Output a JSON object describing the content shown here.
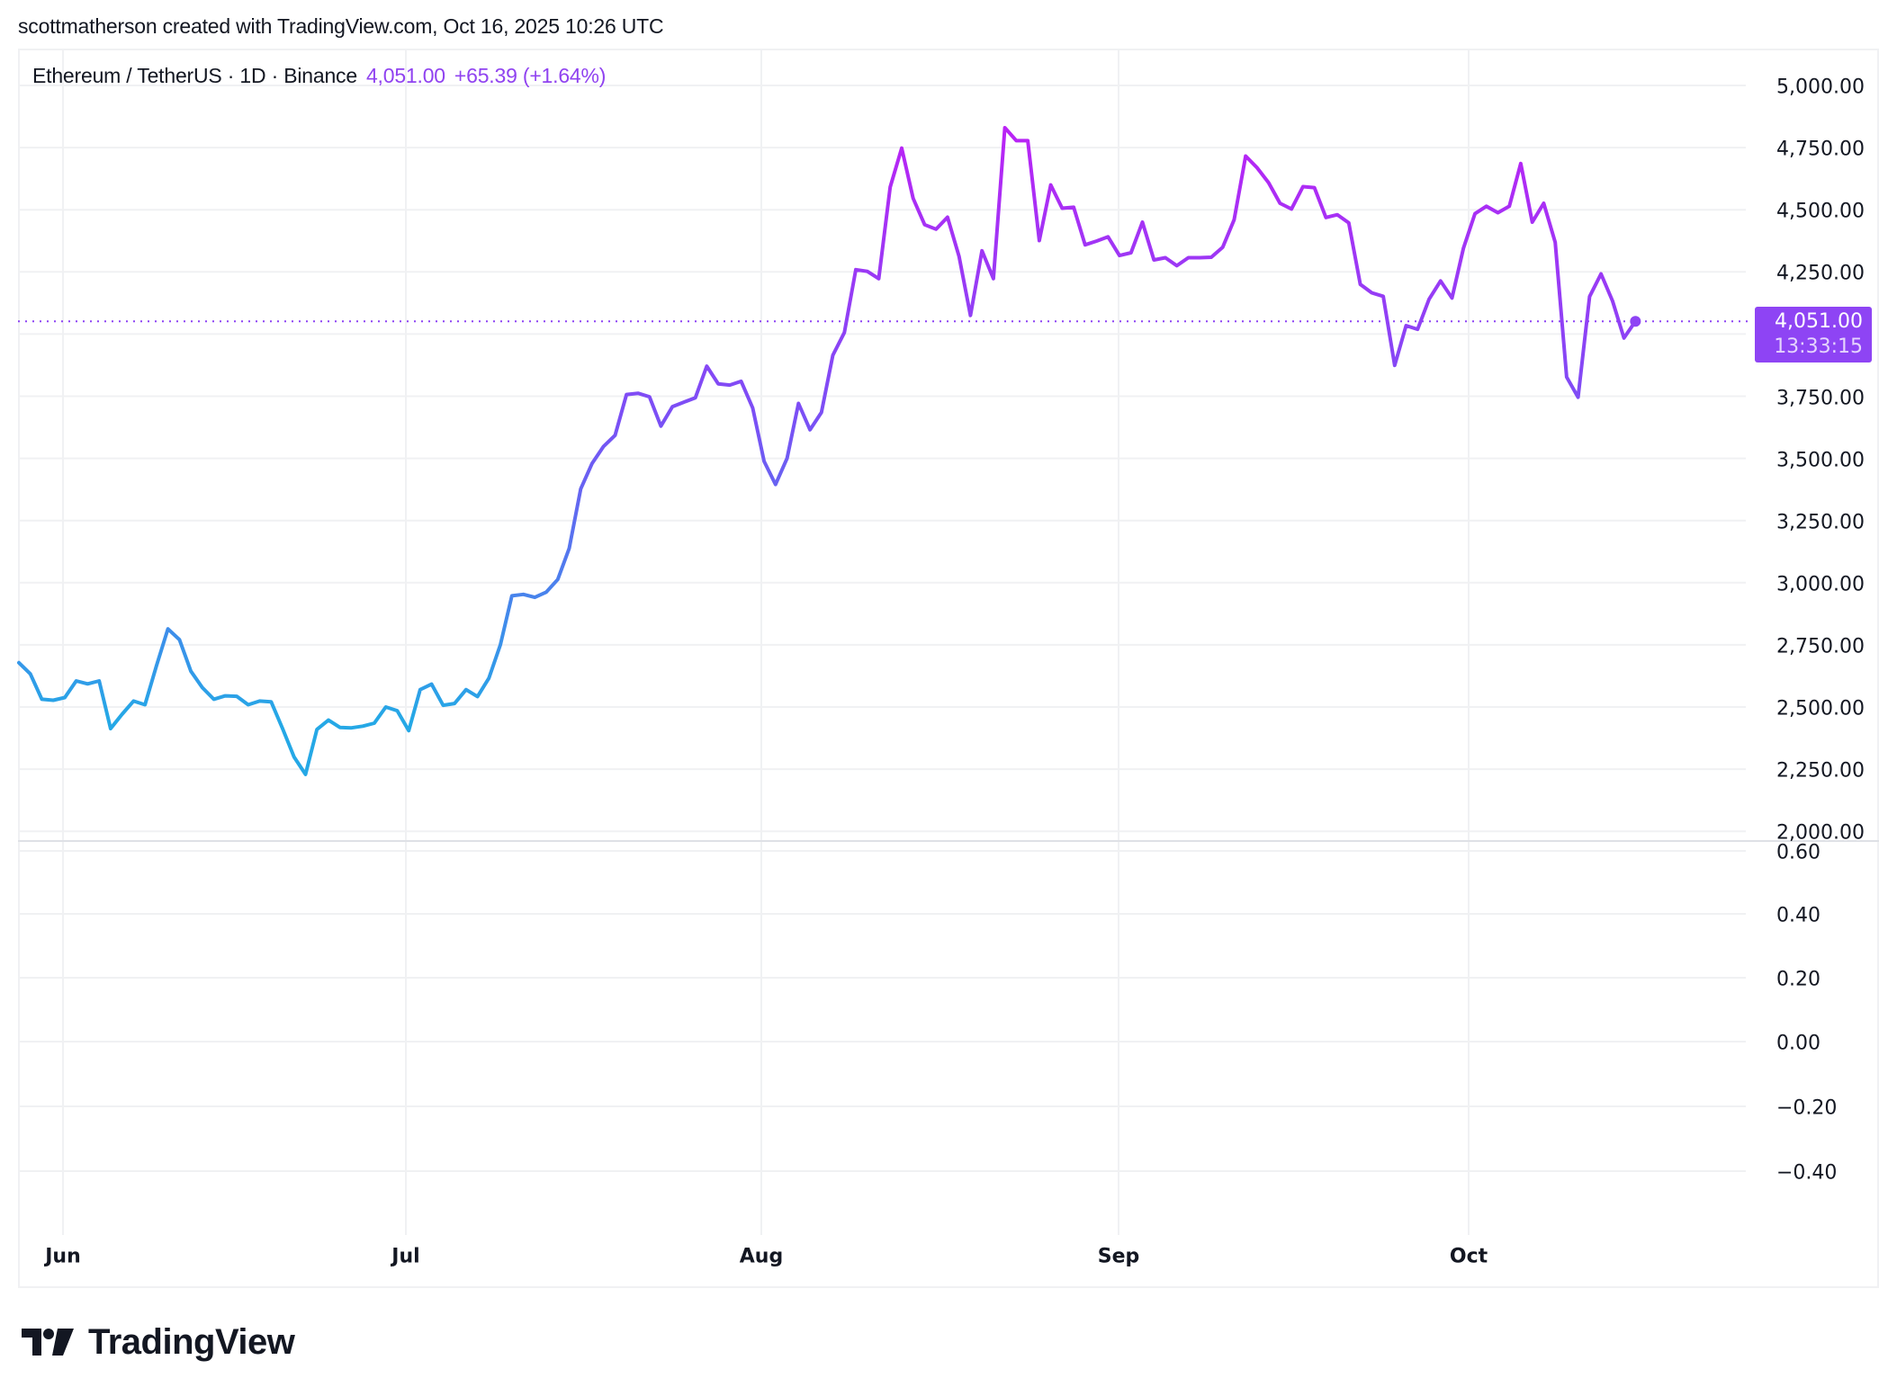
{
  "attribution": "scottmatherson created with TradingView.com, Oct 16, 2025 10:26 UTC",
  "legend": {
    "symbol": "Ethereum / TetherUS · 1D · Binance",
    "last_price": "4,051.00",
    "change": "+65.39 (+1.64%)"
  },
  "price_badge": {
    "price": "4,051.00",
    "countdown": "13:33:15"
  },
  "brand": {
    "logo_text": "TradingView"
  },
  "colors": {
    "line_low": "#25a8e6",
    "line_mid": "#7a50f5",
    "line_high": "#c41cf5",
    "accent": "#8e44f4",
    "grid": "#f0f1f3",
    "text": "#131722"
  },
  "chart_data": {
    "type": "line",
    "title": "Ethereum / TetherUS · 1D · Binance",
    "xlabel": "",
    "ylabel": "",
    "start_date": "May 28, 2025",
    "end_date": "Oct 16, 2025",
    "interval": "1D",
    "x_tick_labels": [
      "Jun",
      "Jul",
      "Aug",
      "Sep",
      "Oct"
    ],
    "y_tick_labels": [
      "5,000.00",
      "4,750.00",
      "4,500.00",
      "4,250.00",
      "3,750.00",
      "3,500.00",
      "3,250.00",
      "3,000.00",
      "2,750.00",
      "2,500.00",
      "2,250.00",
      "2,000.00"
    ],
    "ylim": [
      2000,
      5000
    ],
    "grid": true,
    "last_value": 4051.0,
    "series": [
      {
        "name": "ETHUSDT close",
        "values": [
          2678,
          2633,
          2531,
          2527,
          2538,
          2605,
          2593,
          2605,
          2413,
          2471,
          2524,
          2509,
          2666,
          2814,
          2771,
          2644,
          2578,
          2531,
          2545,
          2543,
          2509,
          2524,
          2521,
          2413,
          2299,
          2229,
          2410,
          2447,
          2418,
          2416,
          2423,
          2435,
          2500,
          2485,
          2405,
          2570,
          2592,
          2507,
          2514,
          2570,
          2542,
          2616,
          2751,
          2947,
          2953,
          2941,
          2962,
          3013,
          3138,
          3377,
          3480,
          3548,
          3593,
          3757,
          3762,
          3748,
          3630,
          3708,
          3726,
          3744,
          3871,
          3800,
          3795,
          3810,
          3703,
          3488,
          3395,
          3500,
          3721,
          3615,
          3685,
          3915,
          4006,
          4259,
          4252,
          4223,
          4591,
          4748,
          4546,
          4440,
          4422,
          4470,
          4313,
          4075,
          4335,
          4223,
          4830,
          4778,
          4778,
          4376,
          4600,
          4506,
          4510,
          4359,
          4374,
          4391,
          4316,
          4327,
          4450,
          4298,
          4307,
          4275,
          4307,
          4307,
          4309,
          4349,
          4460,
          4716,
          4669,
          4609,
          4526,
          4503,
          4593,
          4589,
          4469,
          4480,
          4447,
          4200,
          4166,
          4152,
          3874,
          4034,
          4019,
          4140,
          4214,
          4145,
          4345,
          4484,
          4514,
          4488,
          4514,
          4686,
          4450,
          4526,
          4369,
          3827,
          3746,
          4151,
          4242,
          4133,
          3984,
          4051
        ]
      }
    ],
    "lower_pane": {
      "y_tick_labels": [
        "0.60",
        "0.40",
        "0.20",
        "0.00",
        "−0.20",
        "−0.40"
      ],
      "ylim": [
        -0.6,
        0.65
      ],
      "series": []
    }
  }
}
